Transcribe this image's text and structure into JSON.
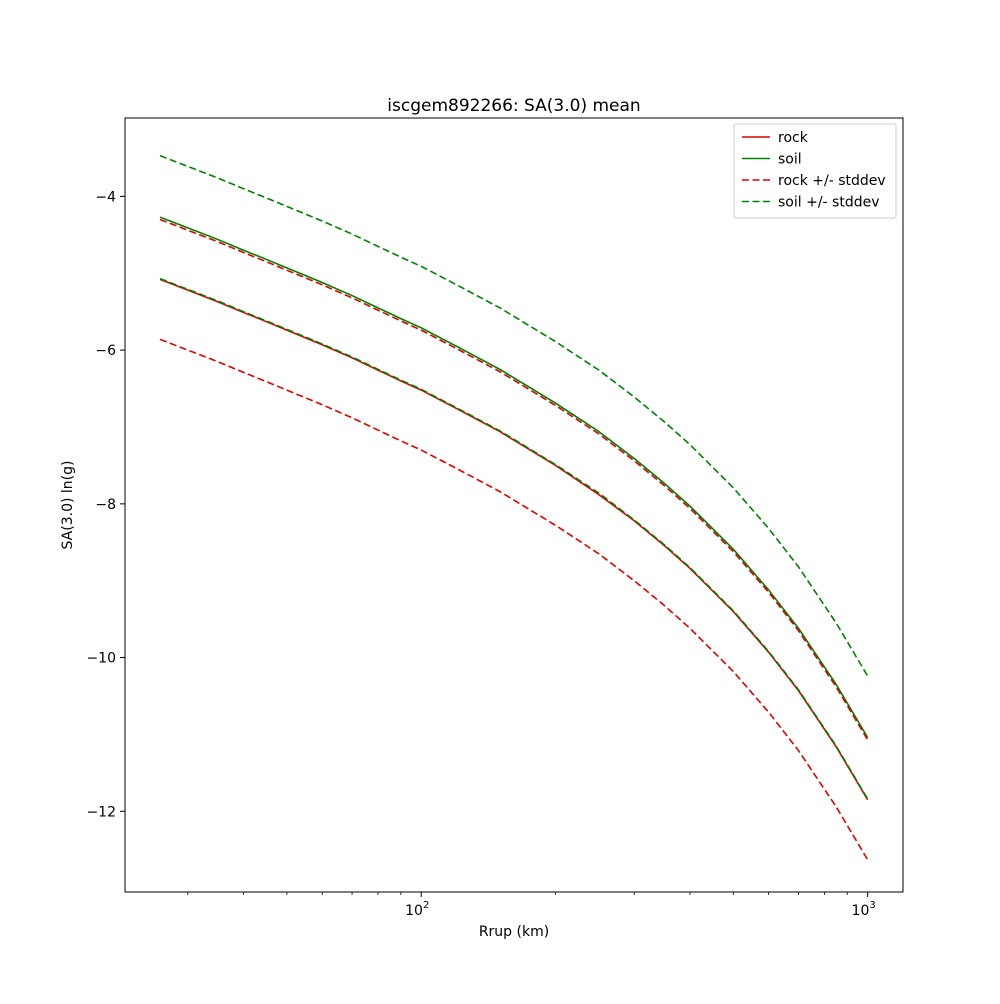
{
  "figure": {
    "title": "iscgem892266: SA(3.0) mean",
    "xlabel": "Rrup (km)",
    "ylabel": "SA(3.0) ln(g)"
  },
  "chart_data": {
    "type": "line",
    "title": "iscgem892266: SA(3.0) mean",
    "xlabel": "Rrup (km)",
    "ylabel": "SA(3.0) ln(g)",
    "x_scale": "log",
    "y_scale": "linear",
    "xlim": [
      21.7,
      1200
    ],
    "ylim": [
      -13.05,
      -2.98
    ],
    "grid": false,
    "x_major_ticks": [
      {
        "value": 100,
        "base": "10",
        "exp": "2"
      },
      {
        "value": 1000,
        "base": "10",
        "exp": "3"
      }
    ],
    "y_ticks": [
      {
        "value": -4,
        "label": "−4"
      },
      {
        "value": -6,
        "label": "−6"
      },
      {
        "value": -8,
        "label": "−8"
      },
      {
        "value": -10,
        "label": "−10"
      },
      {
        "value": -12,
        "label": "−12"
      }
    ],
    "x": [
      26,
      30,
      35,
      40,
      45,
      50,
      60,
      70,
      80,
      90,
      100,
      120,
      150,
      200,
      250,
      300,
      350,
      400,
      500,
      600,
      700,
      850,
      1000
    ],
    "series": [
      {
        "name": "rock",
        "color": "#e00000",
        "style": "solid",
        "values": [
          -5.08,
          -5.22,
          -5.37,
          -5.51,
          -5.63,
          -5.74,
          -5.93,
          -6.1,
          -6.26,
          -6.4,
          -6.52,
          -6.76,
          -7.06,
          -7.5,
          -7.88,
          -8.22,
          -8.54,
          -8.84,
          -9.4,
          -9.93,
          -10.43,
          -11.16,
          -11.85
        ]
      },
      {
        "name": "soil",
        "color": "#008000",
        "style": "solid",
        "values": [
          -4.27,
          -4.41,
          -4.56,
          -4.7,
          -4.82,
          -4.93,
          -5.12,
          -5.29,
          -5.45,
          -5.59,
          -5.71,
          -5.95,
          -6.25,
          -6.69,
          -7.06,
          -7.41,
          -7.73,
          -8.03,
          -8.59,
          -9.12,
          -9.62,
          -10.35,
          -11.04
        ]
      },
      {
        "name": "rock plus stddev",
        "color": "#e00000",
        "style": "dashed",
        "values": [
          -4.3,
          -4.44,
          -4.59,
          -4.73,
          -4.85,
          -4.96,
          -5.15,
          -5.32,
          -5.48,
          -5.62,
          -5.74,
          -5.98,
          -6.28,
          -6.72,
          -7.09,
          -7.44,
          -7.76,
          -8.06,
          -8.62,
          -9.15,
          -9.65,
          -10.38,
          -11.07
        ]
      },
      {
        "name": "rock minus stddev",
        "color": "#e00000",
        "style": "dashed",
        "values": [
          -5.86,
          -6.0,
          -6.15,
          -6.29,
          -6.41,
          -6.52,
          -6.71,
          -6.88,
          -7.04,
          -7.18,
          -7.3,
          -7.54,
          -7.84,
          -8.28,
          -8.65,
          -9.0,
          -9.32,
          -9.62,
          -10.18,
          -10.71,
          -11.21,
          -11.94,
          -12.63
        ]
      },
      {
        "name": "soil plus stddev",
        "color": "#008000",
        "style": "dashed",
        "values": [
          -3.47,
          -3.61,
          -3.76,
          -3.9,
          -4.02,
          -4.13,
          -4.32,
          -4.49,
          -4.65,
          -4.79,
          -4.91,
          -5.15,
          -5.45,
          -5.89,
          -6.26,
          -6.61,
          -6.93,
          -7.23,
          -7.79,
          -8.32,
          -8.82,
          -9.55,
          -10.24
        ]
      },
      {
        "name": "soil minus stddev",
        "color": "#008000",
        "style": "dashed",
        "values": [
          -5.07,
          -5.21,
          -5.36,
          -5.5,
          -5.62,
          -5.73,
          -5.92,
          -6.09,
          -6.25,
          -6.39,
          -6.51,
          -6.75,
          -7.05,
          -7.49,
          -7.86,
          -8.21,
          -8.53,
          -8.83,
          -9.39,
          -9.92,
          -10.42,
          -11.15,
          -11.84
        ]
      }
    ],
    "legend": {
      "position": "upper right",
      "entries": [
        {
          "label": "rock",
          "color": "#e00000",
          "style": "solid"
        },
        {
          "label": "soil",
          "color": "#008000",
          "style": "solid"
        },
        {
          "label": "rock +/- stddev",
          "color": "#e00000",
          "style": "dashed"
        },
        {
          "label": "soil +/- stddev",
          "color": "#008000",
          "style": "dashed"
        }
      ]
    }
  }
}
